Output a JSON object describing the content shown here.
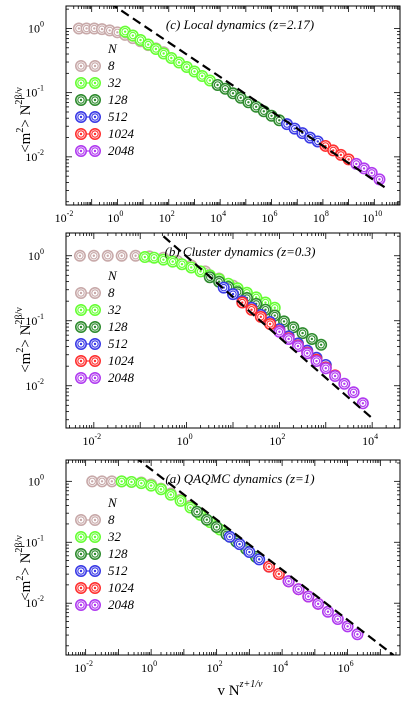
{
  "chart_data": {
    "type": "scatter",
    "figure": {
      "ylabel": {
        "main": "<m",
        "sq": "2",
        "close": "> N",
        "exp": "2β/ν"
      },
      "xlabel": {
        "main": "v N",
        "exp": "z+1/ν"
      }
    },
    "legend_title": "N",
    "series_names": [
      "8",
      "32",
      "128",
      "512",
      "1024",
      "2048"
    ],
    "series_colors": [
      "#c8a9a9",
      "#66ff33",
      "#2e8b2e",
      "#3a3ae6",
      "#ff3030",
      "#b03af0"
    ],
    "panels": [
      {
        "title": "(c) Local dynamics (z=2.17)",
        "xlog": [
          -2,
          11
        ],
        "ylog": [
          -2.75,
          0.35
        ],
        "xticks": [
          -2,
          0,
          2,
          4,
          6,
          8,
          10
        ],
        "yticks": [
          -2,
          -1,
          0
        ],
        "fit_line": {
          "x": [
            -0.3,
            10.5
          ],
          "y": [
            0.4,
            -2.5
          ]
        },
        "series": [
          {
            "name": "8",
            "x": [
              -1.5,
              -1.2,
              -0.9,
              -0.6,
              -0.3,
              0.0,
              0.3,
              0.6,
              0.9,
              1.2,
              1.5,
              1.8
            ],
            "y": [
              0.0,
              0.0,
              0.0,
              -0.01,
              -0.03,
              -0.06,
              -0.1,
              -0.15,
              -0.2,
              -0.26,
              -0.31,
              -0.37
            ]
          },
          {
            "name": "32",
            "x": [
              0.3,
              0.6,
              0.9,
              1.2,
              1.5,
              1.8,
              2.1,
              2.4,
              2.7,
              3.0,
              3.3,
              3.6
            ],
            "y": [
              -0.05,
              -0.11,
              -0.18,
              -0.25,
              -0.32,
              -0.39,
              -0.46,
              -0.53,
              -0.6,
              -0.67,
              -0.74,
              -0.81
            ]
          },
          {
            "name": "128",
            "x": [
              3.9,
              4.2,
              4.5,
              4.8,
              5.1,
              5.4,
              5.7,
              6.0,
              6.3
            ],
            "y": [
              -0.88,
              -0.94,
              -1.01,
              -1.08,
              -1.15,
              -1.22,
              -1.29,
              -1.36,
              -1.43
            ]
          },
          {
            "name": "512",
            "x": [
              6.6,
              6.9,
              7.2,
              7.5,
              7.8
            ],
            "y": [
              -1.49,
              -1.56,
              -1.63,
              -1.7,
              -1.76
            ]
          },
          {
            "name": "1024",
            "x": [
              8.1,
              8.4,
              8.7,
              9.0
            ],
            "y": [
              -1.83,
              -1.9,
              -1.97,
              -2.04
            ]
          },
          {
            "name": "2048",
            "x": [
              9.3,
              9.6,
              9.9,
              10.2
            ],
            "y": [
              -2.11,
              -2.18,
              -2.25,
              -2.35
            ]
          }
        ]
      },
      {
        "title": "(b) Cluster dynamics (z=0.3)",
        "xlog": [
          -2.6,
          4.6
        ],
        "ylog": [
          -2.65,
          0.35
        ],
        "xticks": [
          -2,
          0,
          2,
          4
        ],
        "yticks": [
          -2,
          -1,
          0
        ],
        "fit_line": {
          "x": [
            -0.5,
            4.0
          ],
          "y": [
            0.3,
            -2.5
          ]
        },
        "series": [
          {
            "name": "8",
            "x": [
              -2.3,
              -2.0,
              -1.7,
              -1.4,
              -1.1,
              -0.8,
              -0.5,
              -0.2,
              0.1,
              0.4,
              0.7,
              1.0,
              1.3,
              1.6
            ],
            "y": [
              0.0,
              0.0,
              0.0,
              0.0,
              0.0,
              -0.01,
              -0.03,
              -0.08,
              -0.15,
              -0.24,
              -0.35,
              -0.46,
              -0.59,
              -0.72
            ]
          },
          {
            "name": "32",
            "x": [
              -0.9,
              -0.7,
              -0.5,
              -0.3,
              -0.1,
              0.1,
              0.3,
              0.5,
              0.7,
              0.9,
              1.1,
              1.3,
              1.5,
              1.7,
              1.9
            ],
            "y": [
              -0.02,
              -0.03,
              -0.06,
              -0.09,
              -0.13,
              -0.18,
              -0.24,
              -0.3,
              -0.36,
              -0.43,
              -0.5,
              -0.57,
              -0.64,
              -0.72,
              -0.8
            ]
          },
          {
            "name": "128",
            "x": [
              0.5,
              0.7,
              0.9,
              1.1,
              1.3,
              1.5,
              1.7,
              1.9,
              2.1,
              2.3,
              2.5,
              2.7,
              2.9
            ],
            "y": [
              -0.33,
              -0.4,
              -0.48,
              -0.56,
              -0.65,
              -0.74,
              -0.83,
              -0.92,
              -1.01,
              -1.1,
              -1.19,
              -1.28,
              -1.37
            ]
          },
          {
            "name": "512",
            "x": [
              0.8,
              1.0,
              1.2,
              1.4,
              1.6,
              1.8,
              2.0,
              2.2,
              2.4,
              2.6,
              2.8,
              3.0
            ],
            "y": [
              -0.49,
              -0.59,
              -0.7,
              -0.8,
              -0.91,
              -1.02,
              -1.13,
              -1.24,
              -1.35,
              -1.46,
              -1.57,
              -1.68
            ]
          },
          {
            "name": "1024",
            "x": [
              1.2,
              1.4,
              1.6,
              1.8,
              2.0,
              2.2,
              2.4,
              2.6,
              2.8,
              3.0,
              3.2
            ],
            "y": [
              -0.72,
              -0.83,
              -0.94,
              -1.05,
              -1.16,
              -1.27,
              -1.38,
              -1.49,
              -1.6,
              -1.72,
              -1.84
            ]
          },
          {
            "name": "2048",
            "x": [
              2.0,
              2.2,
              2.4,
              2.6,
              2.8,
              3.0,
              3.2,
              3.4,
              3.6,
              3.8
            ],
            "y": [
              -1.17,
              -1.28,
              -1.39,
              -1.5,
              -1.62,
              -1.73,
              -1.85,
              -1.97,
              -2.1,
              -2.27
            ]
          }
        ]
      },
      {
        "title": "(a) QAQMC dynamics (z=1)",
        "xlog": [
          -2.6,
          7.6
        ],
        "ylog": [
          -2.85,
          0.35
        ],
        "xticks": [
          -2,
          0,
          2,
          4,
          6
        ],
        "yticks": [
          -2,
          -1,
          0
        ],
        "fit_line": {
          "x": [
            -0.5,
            7.4
          ],
          "y": [
            0.4,
            -2.85
          ]
        },
        "series": [
          {
            "name": "8",
            "x": [
              -1.8,
              -1.5,
              -1.2,
              -0.9,
              -0.6,
              -0.3,
              0.0,
              0.3,
              0.6,
              0.9,
              1.2,
              1.5
            ],
            "y": [
              0.0,
              0.0,
              0.0,
              0.0,
              -0.01,
              -0.02,
              -0.05,
              -0.12,
              -0.2,
              -0.3,
              -0.4,
              -0.52
            ]
          },
          {
            "name": "32",
            "x": [
              -0.9,
              -0.6,
              -0.3,
              0.0,
              0.3,
              0.6,
              0.9,
              1.2,
              1.5,
              1.8,
              2.1,
              2.4
            ],
            "y": [
              0.0,
              -0.01,
              -0.03,
              -0.07,
              -0.13,
              -0.22,
              -0.32,
              -0.43,
              -0.55,
              -0.67,
              -0.79,
              -0.91
            ]
          },
          {
            "name": "128",
            "x": [
              1.4,
              1.7,
              2.0,
              2.3,
              2.6,
              2.9,
              3.2
            ],
            "y": [
              -0.5,
              -0.63,
              -0.75,
              -0.87,
              -0.99,
              -1.11,
              -1.24
            ]
          },
          {
            "name": "512",
            "x": [
              2.4,
              2.7,
              3.0,
              3.3,
              3.6,
              3.9,
              4.2
            ],
            "y": [
              -0.91,
              -1.03,
              -1.16,
              -1.28,
              -1.4,
              -1.52,
              -1.64
            ]
          },
          {
            "name": "1024",
            "x": [
              3.6,
              3.9,
              4.2,
              4.5,
              4.8,
              5.1
            ],
            "y": [
              -1.4,
              -1.52,
              -1.64,
              -1.77,
              -1.89,
              -2.01
            ]
          },
          {
            "name": "2048",
            "x": [
              4.2,
              4.5,
              4.8,
              5.1,
              5.4,
              5.7,
              6.0,
              6.3
            ],
            "y": [
              -1.64,
              -1.77,
              -1.89,
              -2.01,
              -2.14,
              -2.26,
              -2.38,
              -2.51
            ]
          }
        ]
      }
    ]
  }
}
